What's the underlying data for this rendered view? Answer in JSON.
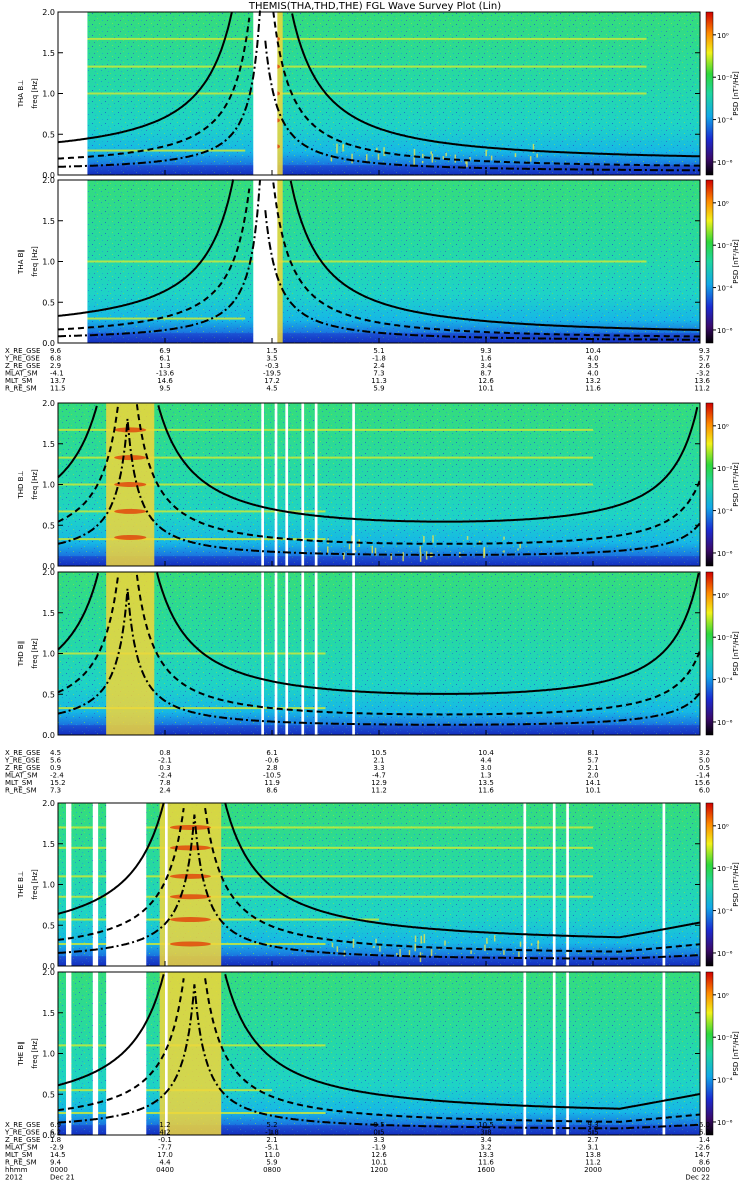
{
  "title": "THEMIS(THA,THD,THE) FGL Wave Survey Plot (Lin)",
  "colors": {
    "background": "#ffffff",
    "gap": "#ffffff",
    "gyro_line": "#000000"
  },
  "chart_data": {
    "type": "heatmap",
    "title": "THEMIS(THA,THD,THE) FGL Wave Survey Plot (Lin)",
    "time_range_hours": [
      0,
      24
    ],
    "freq_range_hz": [
      0,
      2.0
    ],
    "freq_ticks": [
      "0.0",
      "0.5",
      "1.0",
      "1.5",
      "2.0"
    ],
    "colorbar_label": "PSD [nT²/Hz]",
    "colorbar_ticks": [
      "10⁰",
      "10⁻²",
      "10⁻⁴",
      "10⁻⁶"
    ],
    "ylabel_freq": "freq [Hz]",
    "panels": [
      {
        "probe": "THA",
        "ylabel": "THA B⊥",
        "kind": "perp",
        "gaps": [
          [
            0,
            1.1
          ],
          [
            7.3,
            8.2
          ]
        ],
        "bands": [
          [
            0.3,
            7
          ],
          [
            1.0,
            22
          ],
          [
            1.33,
            22
          ],
          [
            1.67,
            22
          ]
        ],
        "fci_min_hz": 0.57
      },
      {
        "probe": "THA",
        "ylabel": "THA B∥",
        "kind": "par",
        "gaps": [
          [
            0,
            1.1
          ],
          [
            7.3,
            8.2
          ]
        ],
        "bands": [
          [
            0.3,
            7
          ],
          [
            1.0,
            22
          ]
        ],
        "fci_min_hz": 0.5
      },
      {
        "probe": "THD",
        "ylabel": "THD B⊥",
        "kind": "perp",
        "gaps": [
          [
            7.6,
            7.7
          ],
          [
            8.1,
            8.2
          ],
          [
            8.5,
            8.6
          ],
          [
            9.1,
            9.2
          ],
          [
            9.6,
            9.7
          ],
          [
            11.0,
            11.1
          ]
        ],
        "bands": [
          [
            0.33,
            10
          ],
          [
            0.67,
            10
          ],
          [
            1.0,
            20
          ],
          [
            1.33,
            20
          ],
          [
            1.67,
            20
          ]
        ],
        "fci_min_hz": 0.52
      },
      {
        "probe": "THD",
        "ylabel": "THD B∥",
        "kind": "par",
        "gaps": [
          [
            7.6,
            7.7
          ],
          [
            8.1,
            8.2
          ],
          [
            8.5,
            8.6
          ],
          [
            9.1,
            9.2
          ],
          [
            9.6,
            9.7
          ],
          [
            11.0,
            11.1
          ]
        ],
        "bands": [
          [
            0.33,
            10
          ],
          [
            1.0,
            10
          ]
        ],
        "fci_min_hz": 0.48
      },
      {
        "probe": "THE",
        "ylabel": "THE B⊥",
        "kind": "perp",
        "gaps": [
          [
            0.3,
            0.5
          ],
          [
            1.3,
            1.5
          ],
          [
            1.8,
            3.3
          ],
          [
            4.0,
            4.1
          ],
          [
            17.4,
            17.5
          ],
          [
            18.5,
            18.6
          ],
          [
            19.0,
            19.1
          ],
          [
            22.6,
            22.7
          ]
        ],
        "bands": [
          [
            0.27,
            10
          ],
          [
            0.57,
            12
          ],
          [
            0.85,
            20
          ],
          [
            1.1,
            20
          ],
          [
            1.45,
            20
          ],
          [
            1.7,
            20
          ]
        ],
        "fci_min_hz": 0.55
      },
      {
        "probe": "THE",
        "ylabel": "THE B∥",
        "kind": "par",
        "gaps": [
          [
            0.3,
            0.5
          ],
          [
            1.3,
            1.5
          ],
          [
            1.8,
            3.3
          ],
          [
            4.0,
            4.1
          ],
          [
            17.4,
            17.5
          ],
          [
            18.5,
            18.6
          ],
          [
            19.0,
            19.1
          ],
          [
            22.6,
            22.7
          ]
        ],
        "bands": [
          [
            0.27,
            10
          ],
          [
            0.55,
            8
          ],
          [
            1.1,
            10
          ]
        ],
        "fci_min_hz": 0.52
      }
    ],
    "ephemeris_labels": [
      "X_RE_GSE",
      "Y_RE_GSE",
      "Z_RE_GSE",
      "MLAT_SM",
      "MLT_SM",
      "R_RE_SM"
    ],
    "ephemeris": [
      {
        "probe": "THA",
        "columns": [
          [
            "9.6",
            "6.8",
            "2.9",
            "-4.1",
            "13.7",
            "11.5"
          ],
          [
            "6.9",
            "6.1",
            "1.3",
            "-13.6",
            "14.6",
            "9.5"
          ],
          [
            "1.5",
            "3.5",
            "-0.3",
            "-19.5",
            "17.2",
            "4.5"
          ],
          [
            "5.1",
            "-1.8",
            "2.4",
            "7.3",
            "11.3",
            "5.9"
          ],
          [
            "9.3",
            "1.6",
            "3.4",
            "8.7",
            "12.6",
            "10.1"
          ],
          [
            "10.4",
            "4.0",
            "3.5",
            "4.0",
            "13.2",
            "11.6"
          ],
          [
            "9.3",
            "5.7",
            "2.6",
            "-3.2",
            "13.6",
            "11.2"
          ]
        ]
      },
      {
        "probe": "THD",
        "columns": [
          [
            "4.5",
            "5.6",
            "0.9",
            "-2.4",
            "15.2",
            "7.3"
          ],
          [
            "0.8",
            "-2.1",
            "0.3",
            "-2.4",
            "7.8",
            "2.4"
          ],
          [
            "6.1",
            "-0.6",
            "2.8",
            "-10.5",
            "11.9",
            "8.6"
          ],
          [
            "10.5",
            "2.1",
            "3.3",
            "-4.7",
            "12.9",
            "11.2"
          ],
          [
            "10.4",
            "4.4",
            "3.0",
            "1.3",
            "13.5",
            "11.6"
          ],
          [
            "8.1",
            "5.7",
            "2.1",
            "2.0",
            "14.1",
            "10.1"
          ],
          [
            "3.2",
            "5.0",
            "0.5",
            "-1.4",
            "15.6",
            "6.0"
          ]
        ]
      },
      {
        "probe": "THE",
        "columns": [
          [
            "6.9",
            "6.2",
            "1.8",
            "-2.9",
            "14.5",
            "9.4"
          ],
          [
            "1.2",
            "4.2",
            "-0.1",
            "-7.7",
            "17.0",
            "4.4"
          ],
          [
            "5.2",
            "-1.8",
            "2.1",
            "-5.1",
            "11.0",
            "5.9"
          ],
          [
            "9.5",
            "0.5",
            "3.3",
            "-1.9",
            "12.6",
            "10.1"
          ],
          [
            "10.5",
            "3.8",
            "3.4",
            "3.2",
            "13.3",
            "11.6"
          ],
          [
            "9.3",
            "5.5",
            "2.7",
            "3.1",
            "13.8",
            "11.2"
          ],
          [
            "6.0",
            "6.0",
            "1.4",
            "-2.6",
            "14.7",
            "8.6"
          ]
        ]
      }
    ],
    "time_row_label": "hhmm",
    "time_ticks": [
      "0000",
      "0400",
      "0800",
      "1200",
      "1600",
      "2000",
      "0000"
    ],
    "date_row": {
      "year": "2012",
      "start": "Dec 21",
      "end": "Dec 22"
    }
  }
}
